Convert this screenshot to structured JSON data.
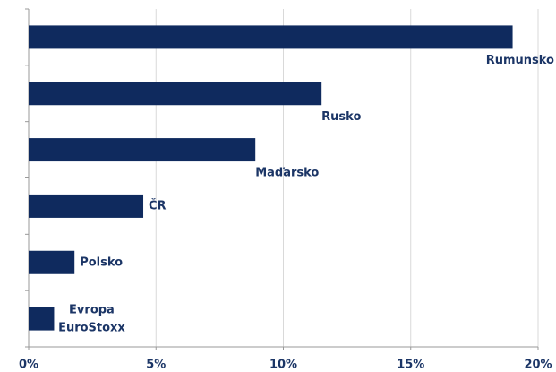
{
  "chart_data": {
    "type": "barh",
    "categories": [
      "Rumunsko",
      "Rusko",
      "Maďarsko",
      "ČR",
      "Polsko",
      "Evropa EuroStoxx"
    ],
    "values": [
      19.0,
      11.5,
      8.9,
      4.5,
      1.8,
      1.0
    ],
    "color": "#0f2a5e",
    "xlim": [
      0,
      20
    ],
    "xticks": [
      {
        "value": 0,
        "label": "0%"
      },
      {
        "value": 5,
        "label": "5%"
      },
      {
        "value": 10,
        "label": "10%"
      },
      {
        "value": 15,
        "label": "15%"
      },
      {
        "value": 20,
        "label": "20%"
      }
    ],
    "grid": true
  }
}
